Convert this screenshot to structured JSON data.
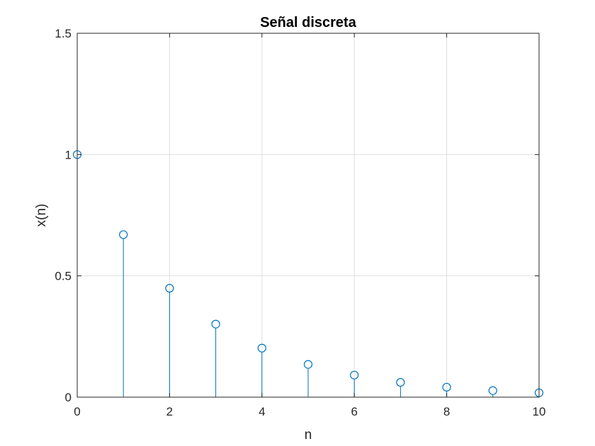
{
  "chart_data": {
    "type": "stem",
    "title": "Señal discreta",
    "xlabel": "n",
    "ylabel": "x(n)",
    "xlim": [
      0,
      10
    ],
    "ylim": [
      0,
      1.5
    ],
    "xticks": [
      "0",
      "2",
      "4",
      "6",
      "8",
      "10"
    ],
    "yticks": [
      "0",
      "0.5",
      "1",
      "1.5"
    ],
    "grid": true,
    "series": [
      {
        "x": [
          0,
          1,
          2,
          3,
          4,
          5,
          6,
          7,
          8,
          9,
          10
        ],
        "values": [
          1.0,
          0.67,
          0.449,
          0.301,
          0.202,
          0.135,
          0.091,
          0.061,
          0.041,
          0.027,
          0.018
        ]
      }
    ],
    "colors": {
      "series": "#0072BD",
      "grid": "#dfdfdf",
      "axis": "#262626"
    }
  }
}
